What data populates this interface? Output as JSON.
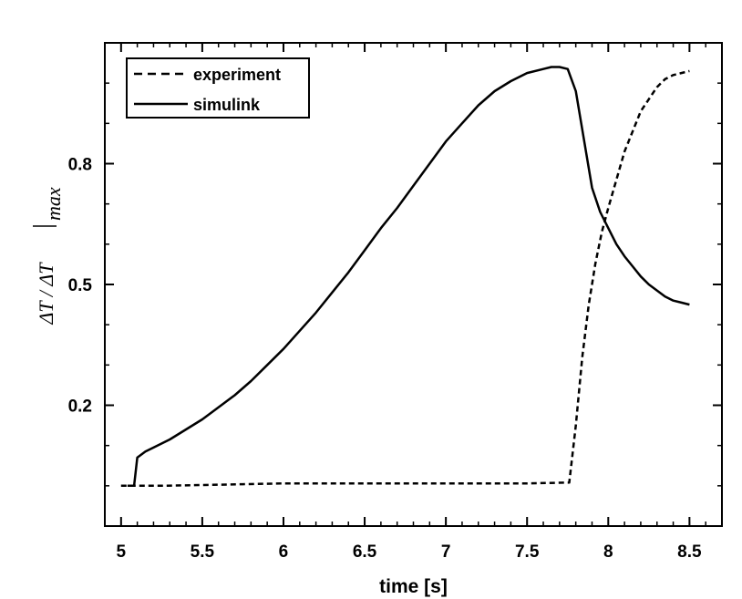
{
  "chart_data": {
    "type": "line",
    "title": "",
    "xlabel": "time [s]",
    "ylabel": {
      "main": "ΔT / ΔT",
      "subscript": "max"
    },
    "xlim": [
      4.9,
      8.7
    ],
    "ylim": [
      -0.1,
      1.1
    ],
    "xticks": [
      5,
      5.5,
      6,
      6.5,
      7,
      7.5,
      8,
      8.5
    ],
    "xtick_labels": [
      "5",
      "5.5",
      "6",
      "6.5",
      "7",
      "7.5",
      "8",
      "8.5"
    ],
    "yticks": [
      0.2,
      0.5,
      0.8
    ],
    "ytick_labels": [
      "0.2",
      "0.5",
      "0.8"
    ],
    "grid": false,
    "legend": {
      "placement": "top-left"
    },
    "series": [
      {
        "name": "experiment",
        "style": "dashed",
        "color": "#000000",
        "x": [
          5.0,
          5.25,
          5.5,
          5.75,
          6.0,
          6.5,
          7.0,
          7.5,
          7.76,
          7.8,
          7.84,
          7.88,
          7.92,
          7.96,
          8.0,
          8.05,
          8.1,
          8.15,
          8.2,
          8.25,
          8.3,
          8.35,
          8.4,
          8.45,
          8.5
        ],
        "y": [
          0.0,
          0.0,
          0.002,
          0.004,
          0.006,
          0.006,
          0.006,
          0.006,
          0.008,
          0.15,
          0.32,
          0.45,
          0.55,
          0.63,
          0.69,
          0.76,
          0.83,
          0.88,
          0.93,
          0.96,
          0.99,
          1.01,
          1.02,
          1.025,
          1.03
        ]
      },
      {
        "name": "simulink",
        "style": "solid",
        "color": "#000000",
        "x": [
          5.04,
          5.08,
          5.1,
          5.15,
          5.2,
          5.3,
          5.4,
          5.5,
          5.6,
          5.7,
          5.8,
          5.9,
          6.0,
          6.1,
          6.2,
          6.3,
          6.4,
          6.5,
          6.6,
          6.7,
          6.8,
          6.9,
          7.0,
          7.1,
          7.2,
          7.3,
          7.4,
          7.5,
          7.6,
          7.65,
          7.7,
          7.75,
          7.8,
          7.85,
          7.9,
          7.95,
          8.0,
          8.05,
          8.1,
          8.15,
          8.2,
          8.25,
          8.3,
          8.35,
          8.4,
          8.45,
          8.5
        ],
        "y": [
          0.0,
          0.0,
          0.07,
          0.085,
          0.095,
          0.115,
          0.14,
          0.165,
          0.195,
          0.225,
          0.26,
          0.3,
          0.34,
          0.385,
          0.43,
          0.48,
          0.53,
          0.585,
          0.64,
          0.69,
          0.745,
          0.8,
          0.855,
          0.9,
          0.945,
          0.98,
          1.005,
          1.025,
          1.035,
          1.04,
          1.04,
          1.035,
          0.98,
          0.86,
          0.74,
          0.68,
          0.64,
          0.6,
          0.57,
          0.545,
          0.52,
          0.5,
          0.485,
          0.47,
          0.46,
          0.455,
          0.45
        ]
      }
    ]
  }
}
